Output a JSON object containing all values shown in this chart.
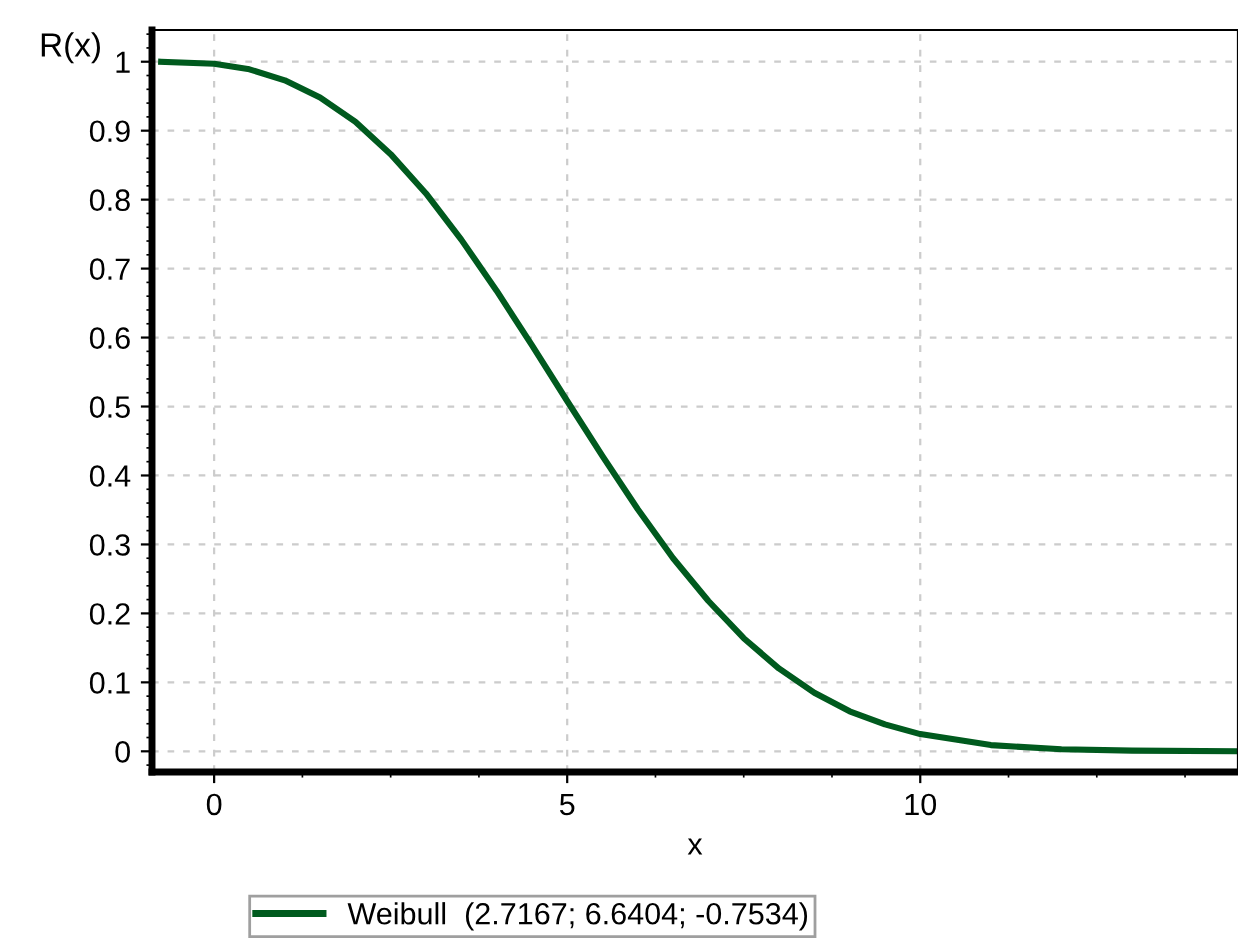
{
  "chart_data": {
    "type": "line",
    "xlabel": "x",
    "ylabel": "R(x)",
    "x": [
      -0.75,
      0,
      0.5,
      1,
      1.5,
      2,
      2.5,
      3,
      3.5,
      4,
      4.5,
      5,
      5.5,
      6,
      6.5,
      7,
      7.5,
      8,
      8.5,
      9,
      9.5,
      10,
      11,
      12,
      13,
      14.5
    ],
    "series": [
      {
        "name": "Weibull  (2.7167; 6.6404; -0.7534)",
        "color": "#005a1e",
        "values": [
          1.0,
          0.997,
          0.989,
          0.973,
          0.948,
          0.913,
          0.866,
          0.809,
          0.742,
          0.668,
          0.589,
          0.508,
          0.428,
          0.351,
          0.28,
          0.218,
          0.164,
          0.12,
          0.085,
          0.058,
          0.039,
          0.025,
          0.009,
          0.003,
          0.001,
          0.0
        ]
      }
    ],
    "xlim": [
      -0.88,
      14.5
    ],
    "ylim": [
      -0.03,
      1.046
    ],
    "xticks": [
      0,
      5,
      10
    ],
    "yticks": [
      0,
      0.1,
      0.2,
      0.3,
      0.4,
      0.5,
      0.6,
      0.7,
      0.8,
      0.9,
      1
    ],
    "grid": true,
    "legend": "bottom",
    "marker": "none",
    "line_style": "solid"
  }
}
